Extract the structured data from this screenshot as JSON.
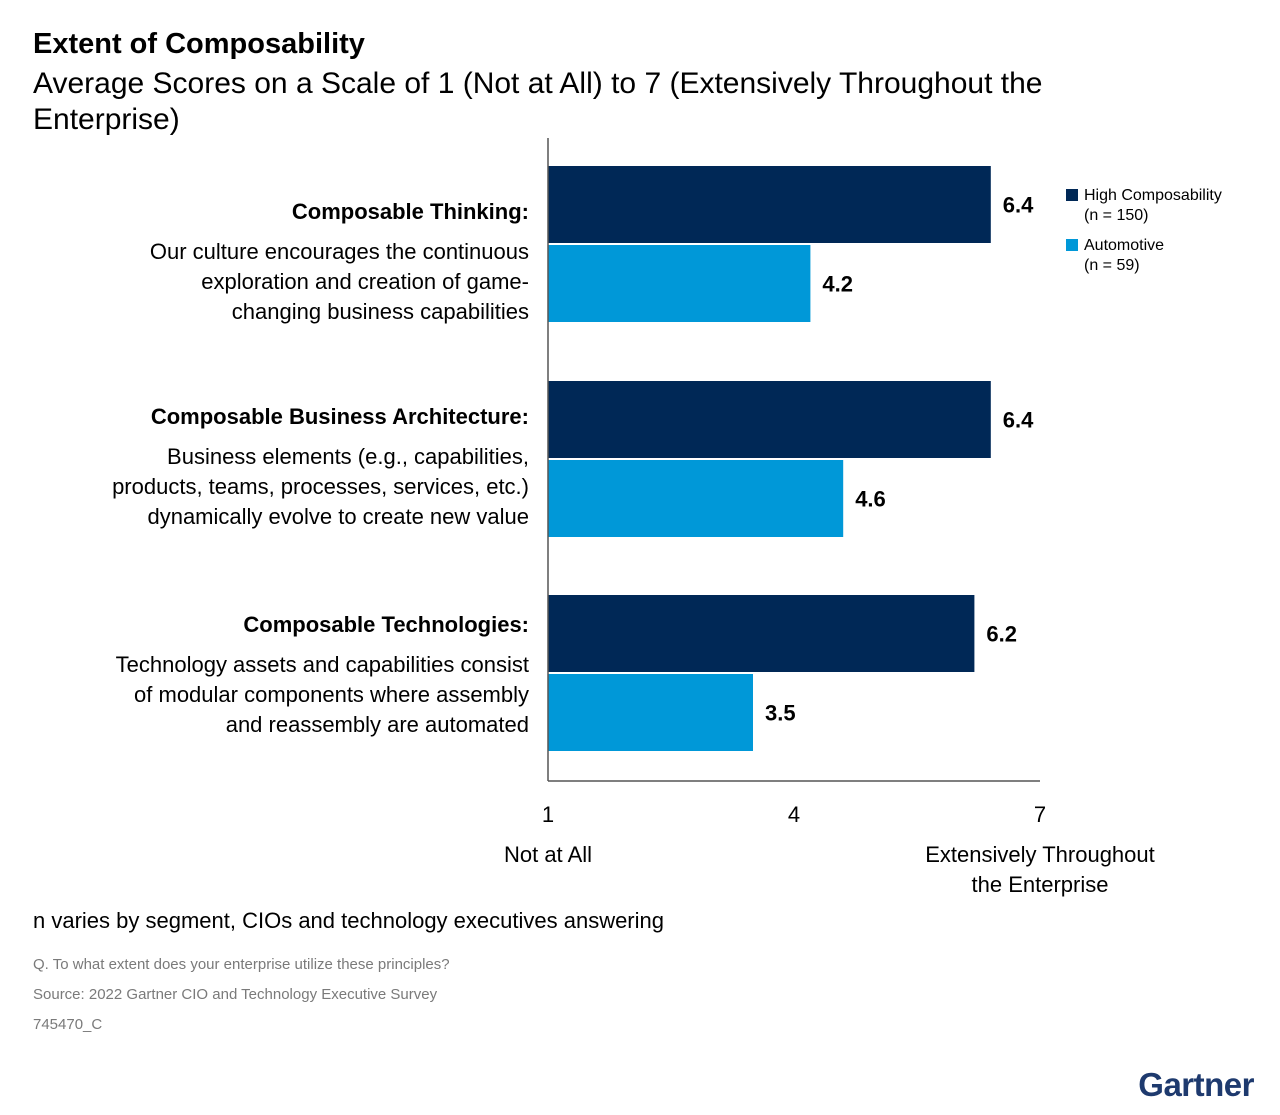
{
  "chart_data": {
    "type": "bar",
    "orientation": "horizontal",
    "title": "Extent of Composability",
    "subtitle": "Average Scores on a Scale of 1 (Not at All) to 7 (Extensively Throughout the Enterprise)",
    "categories": [
      {
        "title": "Composable Thinking:",
        "description": [
          "Our culture encourages the continuous",
          "exploration and creation of game-",
          "changing business capabilities"
        ]
      },
      {
        "title": "Composable Business Architecture:",
        "description": [
          "Business elements (e.g., capabilities,",
          "products, teams, processes, services, etc.)",
          "dynamically evolve to create new value"
        ]
      },
      {
        "title": "Composable Technologies:",
        "description": [
          "Technology assets and capabilities consist",
          "of modular components where assembly",
          "and reassembly are automated"
        ]
      }
    ],
    "series": [
      {
        "name": "High Composability",
        "n_label": "(n = 150)",
        "color": "#002856",
        "values": [
          6.4,
          6.4,
          6.2
        ],
        "value_labels": [
          "6.4",
          "6.4",
          "6.2"
        ]
      },
      {
        "name": "Automotive",
        "n_label": "(n = 59)",
        "color": "#0098d8",
        "values": [
          4.2,
          4.6,
          3.5
        ],
        "value_labels": [
          "4.2",
          "4.6",
          "3.5"
        ]
      }
    ],
    "xlim": [
      1,
      7
    ],
    "xticks": [
      1,
      4,
      7
    ],
    "xtick_labels": [
      "1",
      "4",
      "7"
    ],
    "xaxis_end_labels": {
      "min": "Not at All",
      "max": [
        "Extensively Throughout",
        "the Enterprise"
      ]
    },
    "legend_position": "right",
    "grid": false
  },
  "footnote": "n varies by segment, CIOs and technology executives answering",
  "question": "Q. To what extent does your enterprise utilize these principles?",
  "source": "Source: 2022 Gartner CIO and Technology Executive Survey",
  "doc_id": "745470_C",
  "brand": "Gartner"
}
